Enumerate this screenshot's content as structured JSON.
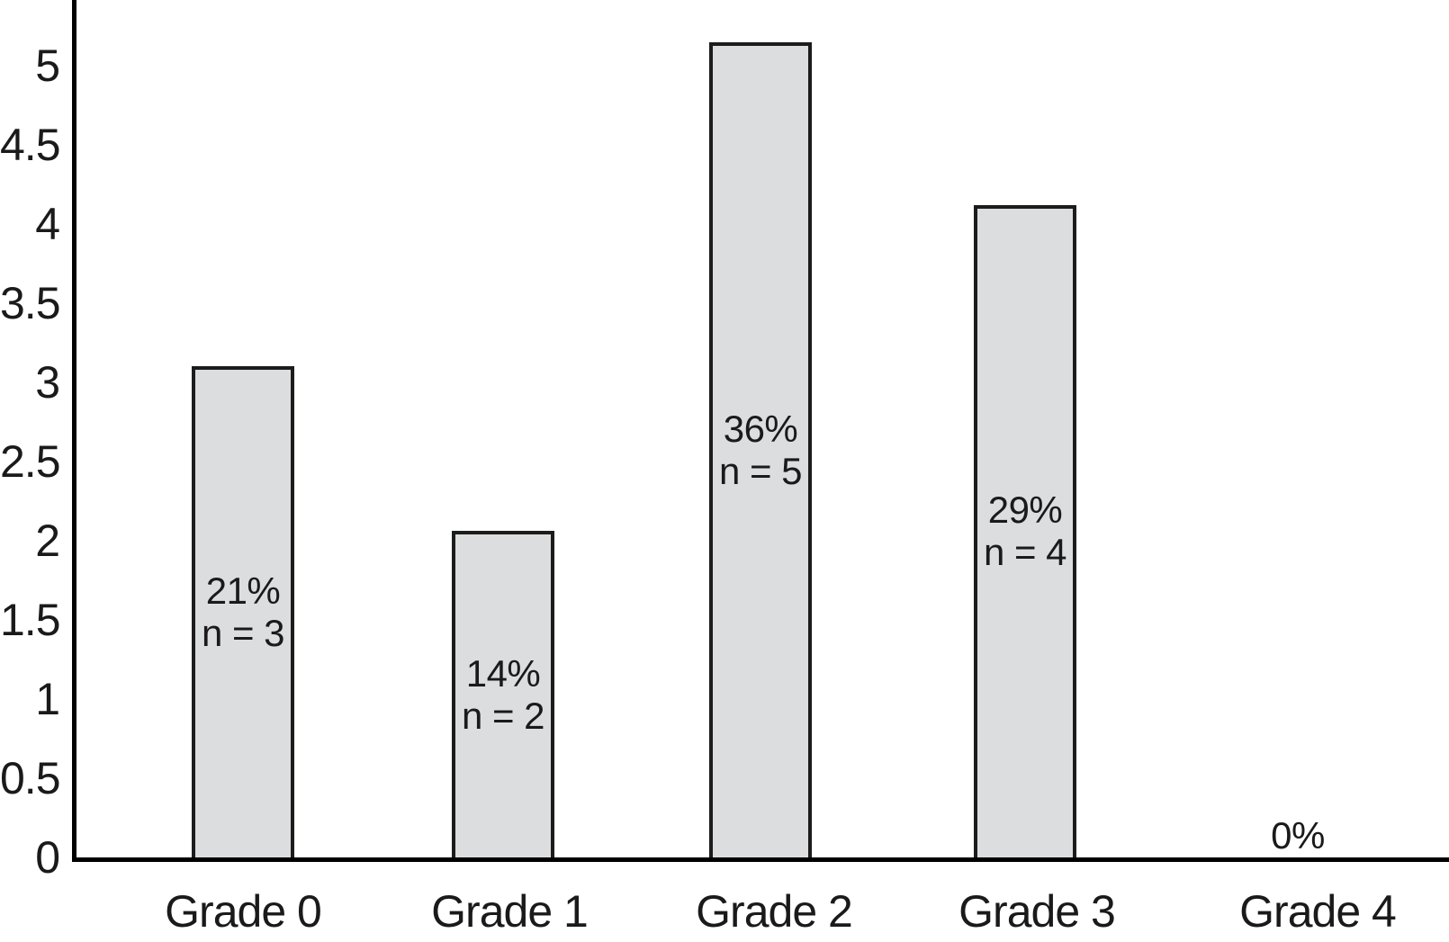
{
  "chart_data": {
    "type": "bar",
    "title": "",
    "xlabel": "",
    "ylabel": "",
    "categories": [
      "Grade 0",
      "Grade 1",
      "Grade 2",
      "Grade 3",
      "Grade 4"
    ],
    "values": [
      3,
      2,
      5,
      4,
      0
    ],
    "bar_heights_drawn": [
      3.1,
      2.06,
      5.15,
      4.12,
      0
    ],
    "percents": [
      "21%",
      "14%",
      "36%",
      "29%",
      "0%"
    ],
    "bar_inner_labels": [
      [
        "21%",
        "n = 3"
      ],
      [
        "14%",
        "n = 2"
      ],
      [
        "36%",
        "n = 5"
      ],
      [
        "29%",
        "n = 4"
      ],
      []
    ],
    "zero_bar_label": "0%",
    "y_tick_labels": [
      "5",
      "4.5",
      "4",
      "3.5",
      "3",
      "2.5",
      "2",
      "1.5",
      "1",
      "0.5",
      "0"
    ],
    "ylim": [
      0,
      5.4
    ],
    "grid": false,
    "legend_position": "none",
    "colors": {
      "bar_fill": "#dcddde",
      "bar_border": "#1c1c1c",
      "axis": "#000000",
      "text": "#1a1a1a",
      "background": "#ffffff"
    }
  }
}
